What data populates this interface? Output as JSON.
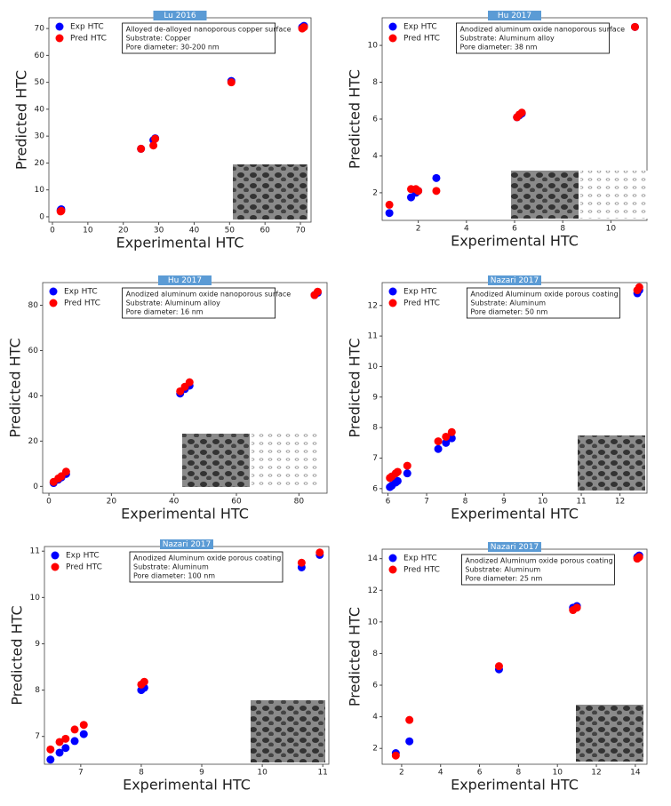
{
  "chart_data": [
    {
      "type": "scatter",
      "title": "Lu 2016",
      "x_label": "Experimental HTC",
      "y_label": "Predicted HTC",
      "annotation": [
        "Alloyed de-alloyed nanoporous copper surface",
        "Substrate: Copper",
        "Pore diameter: 30-200 nm"
      ],
      "x": [
        2.5,
        2.3,
        25,
        28.5,
        29,
        50.5,
        70.5,
        71
      ],
      "series": [
        {
          "name": "Exp HTC",
          "color": "#0000ff",
          "values": [
            2.8,
            2.5,
            25.3,
            28.5,
            29.2,
            50.5,
            70.5,
            71
          ]
        },
        {
          "name": "Pred HTC",
          "color": "#ff0000",
          "values": [
            2.2,
            2.0,
            25.3,
            26.5,
            29,
            50,
            70,
            70.5
          ]
        }
      ],
      "xlim": [
        -1,
        73
      ],
      "ylim": [
        -2,
        74
      ],
      "xticks": [
        0,
        10,
        20,
        30,
        40,
        50,
        60,
        70
      ],
      "yticks": [
        0,
        10,
        20,
        30,
        40,
        50,
        60,
        70
      ],
      "legend": "upper left"
    },
    {
      "type": "scatter",
      "title": "Hu 2017",
      "x_label": "Experimental HTC",
      "y_label": "Predicted HTC",
      "annotation": [
        "Anodized aluminum oxide nanoporous surface",
        "Substrate: Aluminum alloy",
        "Pore diameter: 38 nm"
      ],
      "x": [
        0.8,
        1.7,
        1.9,
        2.0,
        2.75,
        6.1,
        6.2,
        6.3,
        11
      ],
      "series": [
        {
          "name": "Exp HTC",
          "color": "#0000ff",
          "values": [
            0.9,
            1.75,
            2.0,
            2.1,
            2.8,
            6.1,
            6.2,
            6.3,
            11
          ]
        },
        {
          "name": "Pred HTC",
          "color": "#ff0000",
          "values": [
            1.35,
            2.2,
            2.2,
            2.1,
            2.1,
            6.1,
            6.25,
            6.35,
            11
          ]
        }
      ],
      "xlim": [
        0.5,
        11.5
      ],
      "ylim": [
        0.5,
        11.5
      ],
      "xticks": [
        2,
        4,
        6,
        8,
        10
      ],
      "yticks": [
        2,
        4,
        6,
        8,
        10
      ],
      "legend": "upper left"
    },
    {
      "type": "scatter",
      "title": "Hu 2017",
      "x_label": "Experimental HTC",
      "y_label": "Predicted HTC",
      "annotation": [
        "Anodized aluminum oxide nanoporous surface",
        "Substrate: Aluminum alloy",
        "Pore diameter: 16 nm"
      ],
      "x": [
        1.5,
        3,
        4,
        5.5,
        42,
        43.5,
        45,
        85,
        86
      ],
      "series": [
        {
          "name": "Exp HTC",
          "color": "#0000ff",
          "values": [
            1.5,
            3,
            4,
            5.5,
            41,
            43,
            44.5,
            84.5,
            85.5
          ]
        },
        {
          "name": "Pred HTC",
          "color": "#ff0000",
          "values": [
            2,
            3.5,
            4.5,
            6.5,
            42,
            44,
            46,
            84.5,
            86
          ]
        }
      ],
      "xlim": [
        -2,
        89
      ],
      "ylim": [
        -3,
        90
      ],
      "xticks": [
        0,
        20,
        40,
        60,
        80
      ],
      "yticks": [
        0,
        20,
        40,
        60,
        80
      ],
      "legend": "upper left"
    },
    {
      "type": "scatter",
      "title": "Nazari 2017",
      "x_label": "Experimental HTC",
      "y_label": "Predicted HTC",
      "annotation": [
        "Anodized Aluminum oxide porous coating",
        "Substrate: Aluminum",
        "Pore diameter: 50 nm"
      ],
      "x": [
        6.05,
        6.1,
        6.2,
        6.25,
        6.5,
        7.3,
        7.5,
        7.65,
        12.45,
        12.5
      ],
      "series": [
        {
          "name": "Exp HTC",
          "color": "#0000ff",
          "values": [
            6.05,
            6.1,
            6.2,
            6.25,
            6.5,
            7.3,
            7.5,
            7.65,
            12.4,
            12.5
          ]
        },
        {
          "name": "Pred HTC",
          "color": "#ff0000",
          "values": [
            6.35,
            6.4,
            6.5,
            6.55,
            6.75,
            7.55,
            7.7,
            7.85,
            12.5,
            12.6
          ]
        }
      ],
      "xlim": [
        5.85,
        12.7
      ],
      "ylim": [
        5.85,
        12.75
      ],
      "xticks": [
        6,
        7,
        8,
        9,
        10,
        11,
        12
      ],
      "yticks": [
        6,
        7,
        8,
        9,
        10,
        11,
        12
      ],
      "legend": "upper left"
    },
    {
      "type": "scatter",
      "title": "Nazari 2017",
      "x_label": "Experimental HTC",
      "y_label": "Predicted HTC",
      "annotation": [
        "Anodized Aluminum oxide porous coating",
        "Substrate: Aluminum",
        "Pore diameter: 100 nm"
      ],
      "x": [
        6.5,
        6.65,
        6.75,
        6.9,
        7.05,
        8.0,
        8.05,
        10.65,
        10.95
      ],
      "series": [
        {
          "name": "Exp HTC",
          "color": "#0000ff",
          "values": [
            6.5,
            6.65,
            6.75,
            6.9,
            7.05,
            8.0,
            8.05,
            10.65,
            10.92
          ]
        },
        {
          "name": "Pred HTC",
          "color": "#ff0000",
          "values": [
            6.72,
            6.88,
            6.95,
            7.15,
            7.25,
            8.12,
            8.18,
            10.75,
            10.97
          ]
        }
      ],
      "xlim": [
        6.4,
        11.1
      ],
      "ylim": [
        6.4,
        11.1
      ],
      "xticks": [
        7,
        8,
        9,
        10,
        11
      ],
      "yticks": [
        7,
        8,
        9,
        10,
        11
      ],
      "legend": "upper left"
    },
    {
      "type": "scatter",
      "title": "Nazari 2017",
      "x_label": "Experimental HTC",
      "y_label": "Predicted HTC",
      "annotation": [
        "Anodized Aluminum oxide porous coating",
        "Substrate: Aluminum",
        "Pore diameter: 25 nm"
      ],
      "x": [
        1.7,
        2.4,
        7,
        10.8,
        11,
        14.1,
        14.2
      ],
      "series": [
        {
          "name": "Exp HTC",
          "color": "#0000ff",
          "values": [
            1.7,
            2.45,
            7.0,
            10.9,
            11,
            14.1,
            14.2
          ]
        },
        {
          "name": "Pred HTC",
          "color": "#ff0000",
          "values": [
            1.55,
            3.8,
            7.2,
            10.75,
            10.9,
            14.0,
            14.1
          ]
        }
      ],
      "xlim": [
        1,
        14.6
      ],
      "ylim": [
        1,
        14.6
      ],
      "xticks": [
        2,
        4,
        6,
        8,
        10,
        12,
        14
      ],
      "yticks": [
        2,
        4,
        6,
        8,
        10,
        12,
        14
      ],
      "legend": "upper left"
    }
  ]
}
